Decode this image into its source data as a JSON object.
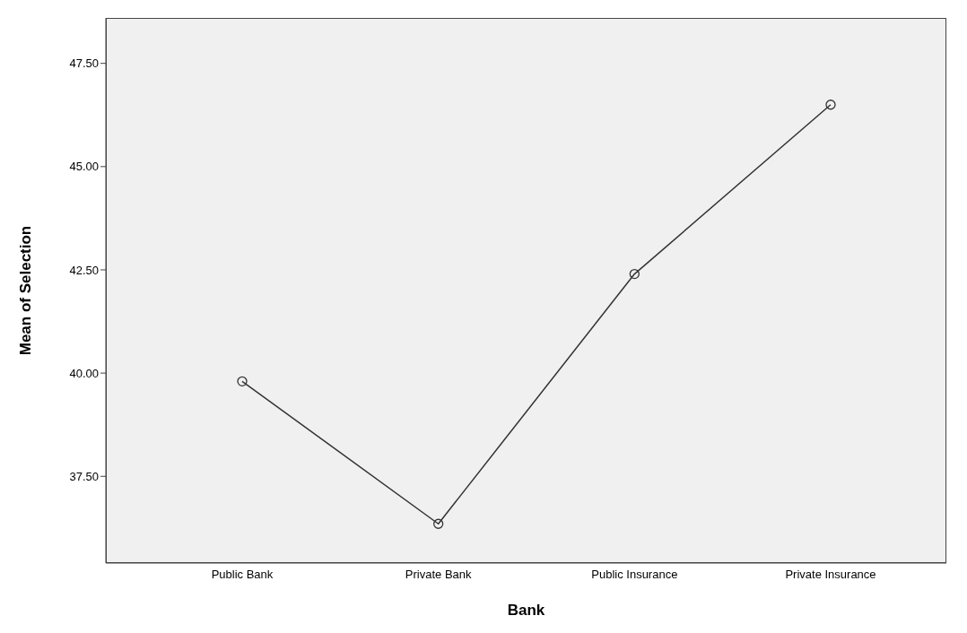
{
  "chart_data": {
    "type": "line",
    "xlabel": "Bank",
    "ylabel": "Mean of Selection",
    "categories": [
      "Public Bank",
      "Private Bank",
      "Public Insurance",
      "Private Insurance"
    ],
    "series": [
      {
        "color": "#333333",
        "values": [
          39.8,
          36.35,
          42.4,
          46.5
        ]
      }
    ],
    "ylim": [
      35.4,
      48.6
    ],
    "yticks": [
      {
        "value": 37.5,
        "label": "37.50"
      },
      {
        "value": 40,
        "label": "40.00"
      },
      {
        "value": 42.5,
        "label": "42.50"
      },
      {
        "value": 45,
        "label": "45.00"
      },
      {
        "value": 47.5,
        "label": "47.50"
      }
    ],
    "marker": "circle",
    "grid": false
  }
}
